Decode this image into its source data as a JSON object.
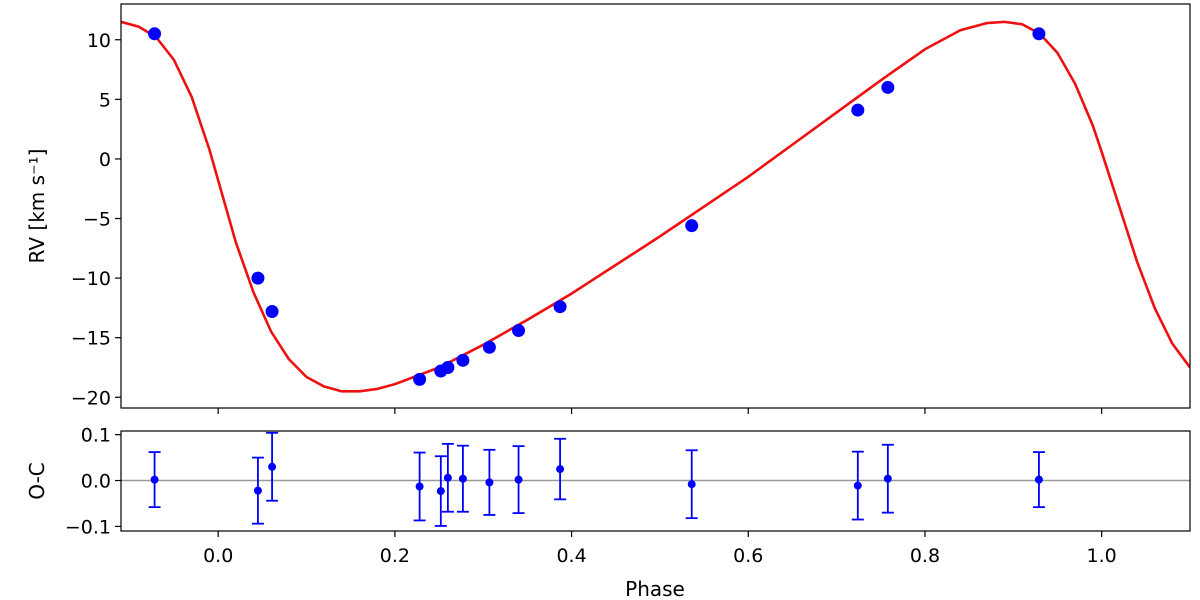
{
  "chart_data": [
    {
      "type": "scatter",
      "panel": "rv",
      "title": "",
      "xlabel": "",
      "ylabel": "RV [km s⁻¹]",
      "xlim": [
        -0.11,
        1.1
      ],
      "ylim": [
        -20.9,
        13.0
      ],
      "grid": false,
      "legend": "none",
      "yticks": [
        10,
        5,
        0,
        -5,
        -10,
        -15,
        -20
      ],
      "ytick_labels": [
        "10",
        "5",
        "0",
        "−5",
        "−10",
        "−15",
        "−20"
      ],
      "xticks": [
        0.0,
        0.2,
        0.4,
        0.6,
        0.8,
        1.0
      ],
      "series": [
        {
          "kind": "points",
          "color": "#0000ff",
          "x": [
            -0.072,
            0.045,
            0.061,
            0.228,
            0.252,
            0.26,
            0.277,
            0.307,
            0.34,
            0.387,
            0.536,
            0.724,
            0.758,
            0.929
          ],
          "y": [
            10.5,
            -10.0,
            -12.8,
            -18.5,
            -17.8,
            -17.5,
            -16.9,
            -15.8,
            -14.4,
            -12.4,
            -5.6,
            4.1,
            6.0,
            10.5
          ]
        },
        {
          "kind": "curve",
          "color": "#ee1111",
          "x": [
            -0.11,
            -0.09,
            -0.07,
            -0.05,
            -0.03,
            -0.01,
            0.0,
            0.02,
            0.04,
            0.06,
            0.08,
            0.1,
            0.12,
            0.14,
            0.16,
            0.18,
            0.2,
            0.25,
            0.3,
            0.35,
            0.4,
            0.45,
            0.5,
            0.55,
            0.6,
            0.65,
            0.7,
            0.75,
            0.8,
            0.84,
            0.87,
            0.89,
            0.91,
            0.93,
            0.95,
            0.97,
            0.99,
            1.0,
            1.02,
            1.04,
            1.06,
            1.08,
            1.1
          ],
          "y": [
            11.5,
            11.1,
            10.2,
            8.3,
            5.2,
            0.8,
            -1.8,
            -7.0,
            -11.2,
            -14.5,
            -16.8,
            -18.3,
            -19.1,
            -19.5,
            -19.5,
            -19.3,
            -18.9,
            -17.5,
            -15.6,
            -13.5,
            -11.3,
            -8.9,
            -6.5,
            -4.0,
            -1.5,
            1.2,
            3.9,
            6.6,
            9.2,
            10.8,
            11.4,
            11.5,
            11.3,
            10.5,
            8.9,
            6.3,
            2.8,
            0.6,
            -4.0,
            -8.6,
            -12.5,
            -15.5,
            -17.5
          ]
        }
      ]
    },
    {
      "type": "scatter",
      "panel": "residuals",
      "title": "",
      "xlabel": "Phase",
      "ylabel": "O-C",
      "xlim": [
        -0.11,
        1.1
      ],
      "ylim": [
        -0.11,
        0.108
      ],
      "grid": false,
      "legend": "none",
      "reference_line": 0,
      "yticks": [
        0.1,
        0.0,
        -0.1
      ],
      "ytick_labels": [
        "0.1",
        "0.0",
        "−0.1"
      ],
      "xticks": [
        0.0,
        0.2,
        0.4,
        0.6,
        0.8,
        1.0
      ],
      "xtick_labels": [
        "0.0",
        "0.2",
        "0.4",
        "0.6",
        "0.8",
        "1.0"
      ],
      "series": [
        {
          "kind": "errorbar",
          "color": "#0000ff",
          "x": [
            -0.072,
            0.045,
            0.061,
            0.228,
            0.252,
            0.26,
            0.277,
            0.307,
            0.34,
            0.387,
            0.536,
            0.724,
            0.758,
            0.929
          ],
          "y": [
            0.002,
            -0.022,
            0.03,
            -0.013,
            -0.023,
            0.006,
            0.004,
            -0.004,
            0.002,
            0.025,
            -0.008,
            -0.011,
            0.004,
            0.002
          ],
          "err": [
            0.06,
            0.072,
            0.074,
            0.074,
            0.076,
            0.074,
            0.072,
            0.071,
            0.073,
            0.066,
            0.074,
            0.074,
            0.074,
            0.06
          ]
        }
      ]
    }
  ]
}
